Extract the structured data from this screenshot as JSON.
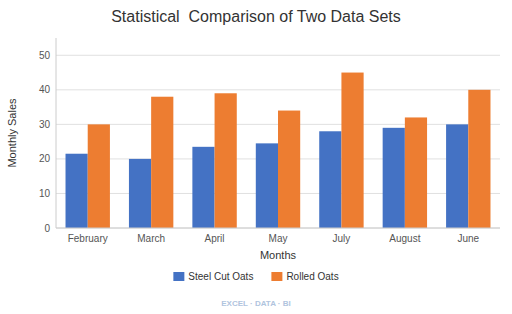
{
  "chart_data": {
    "type": "bar",
    "title": "Statistical  Comparison of Two Data Sets",
    "x_label": "Months",
    "y_label": "Monthly Sales",
    "categories": [
      "February",
      "March",
      "April",
      "May",
      "July",
      "August",
      "June"
    ],
    "series": [
      {
        "name": "Steel Cut Oats",
        "color": "#4472C4",
        "values": [
          21.5,
          20,
          23.5,
          24.5,
          28,
          29,
          30
        ]
      },
      {
        "name": "Rolled Oats",
        "color": "#ED7D31",
        "values": [
          30,
          38,
          39,
          34,
          45,
          32,
          40
        ]
      }
    ],
    "ylim": [
      0,
      55
    ],
    "yticks": [
      0,
      10,
      20,
      30,
      40,
      50
    ],
    "grid": true,
    "legend": "bottom",
    "annotations": [
      "EXCEL · DATA · BI"
    ]
  }
}
